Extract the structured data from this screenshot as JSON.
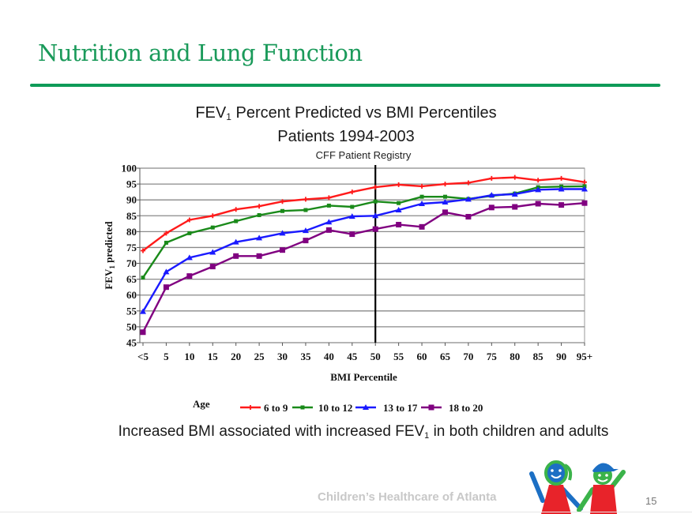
{
  "slide": {
    "title": "Nutrition and Lung Function",
    "accent_color": "#0f9b58",
    "caption_pre": "Increased BMI associated with increased FEV",
    "caption_sub": "1",
    "caption_post": " in both children and adults",
    "footer_brand": "Children’s Healthcare of Atlanta",
    "page_number": "15",
    "logo_icon": "two-children-waving-icon"
  },
  "chart_data": {
    "type": "line",
    "title_pre": "FEV",
    "title_sub": "1",
    "title_post": " Percent Predicted vs BMI Percentiles",
    "title_line2": "Patients 1994-2003",
    "subtitle": "CFF Patient Registry",
    "xlabel": "BMI Percentile",
    "ylabel_pre": "FEV",
    "ylabel_sub": "1",
    "ylabel_post": " predicted",
    "categories": [
      "<5",
      "5",
      "10",
      "15",
      "20",
      "25",
      "30",
      "35",
      "40",
      "45",
      "50",
      "55",
      "60",
      "65",
      "70",
      "75",
      "80",
      "85",
      "90",
      "95+"
    ],
    "ylim": [
      45,
      100
    ],
    "yticks": [
      45,
      50,
      55,
      60,
      65,
      70,
      75,
      80,
      85,
      90,
      95,
      100
    ],
    "grid": true,
    "reference_line_category": "50",
    "legend_title": "Age",
    "legend_position": "bottom",
    "series": [
      {
        "name": "6 to 9",
        "color": "#ff1a1a",
        "marker": "plus",
        "values": [
          74,
          79.5,
          83.7,
          85,
          87,
          88,
          89.5,
          90.2,
          90.7,
          92.5,
          94,
          94.8,
          94.3,
          95,
          95.4,
          96.8,
          97.1,
          96.2,
          96.8,
          95.6
        ]
      },
      {
        "name": "10 to 12",
        "color": "#1a8a1a",
        "marker": "square-small",
        "values": [
          65.5,
          76.5,
          79.5,
          81.3,
          83.3,
          85.2,
          86.5,
          86.8,
          88.2,
          87.8,
          89.5,
          89,
          91,
          91,
          90.3,
          91.3,
          92,
          94,
          94.2,
          94.3
        ]
      },
      {
        "name": "13 to 17",
        "color": "#1a1aff",
        "marker": "triangle",
        "values": [
          54.8,
          67.3,
          71.8,
          73.5,
          76.7,
          78,
          79.5,
          80.3,
          83,
          84.8,
          85,
          86.8,
          88.8,
          89.3,
          90.2,
          91.5,
          91.8,
          93.2,
          93.4,
          93.4
        ]
      },
      {
        "name": "18 to 20",
        "color": "#800080",
        "marker": "square",
        "values": [
          48.3,
          62.5,
          66,
          69,
          72.3,
          72.3,
          74.2,
          77.2,
          80.5,
          79.2,
          80.8,
          82.2,
          81.5,
          86.1,
          84.7,
          87.6,
          87.8,
          88.8,
          88.4,
          89
        ]
      }
    ]
  }
}
